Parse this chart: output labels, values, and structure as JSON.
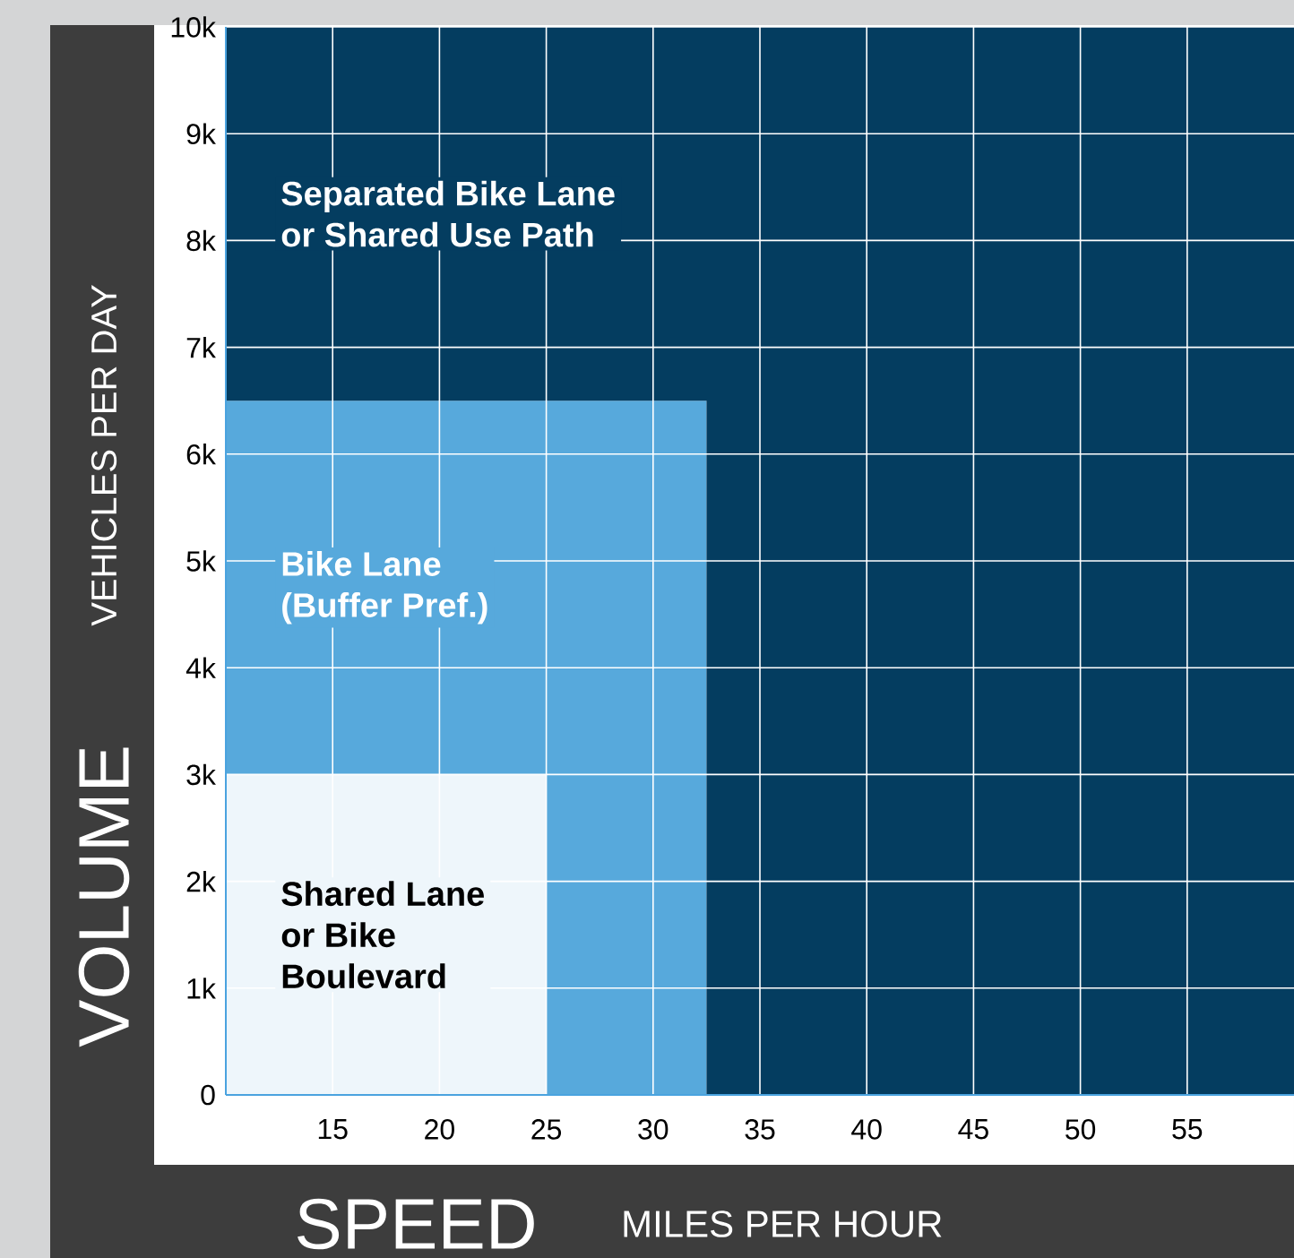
{
  "chart_data": {
    "type": "area",
    "stacked": true,
    "xlabel": "SPEED",
    "ylabel": "VOLUME",
    "annotations": [
      "MILES PER HOUR",
      "VEHICLES PER DAY"
    ],
    "x": [
      10,
      25,
      25,
      32.5,
      32.5,
      60
    ],
    "series": [
      {
        "name": "Shared Lane\nor Bike\nBoulevard",
        "color": "#eef6fb",
        "values": [
          3000,
          3000,
          0,
          null,
          null,
          null
        ]
      },
      {
        "name": "Bike Lane\n(Buffer Pref.)",
        "color": "#57a9dc",
        "values": [
          3500,
          3500,
          6500,
          6500,
          0,
          null
        ]
      },
      {
        "name": "Separated Bike Lane\nor Shared Use Path",
        "color": "#043d60",
        "values": [
          3500,
          3500,
          3500,
          3500,
          10000,
          10000
        ]
      }
    ],
    "xlim": [
      10,
      60
    ],
    "ylim": [
      0,
      10000
    ],
    "xticks": [
      15,
      20,
      25,
      30,
      35,
      40,
      45,
      50,
      55
    ],
    "yticks": [
      0,
      {
        "value": 1000,
        "label": "1k"
      },
      {
        "value": 2000,
        "label": "2k"
      },
      {
        "value": 3000,
        "label": "3k"
      },
      {
        "value": 4000,
        "label": "4k"
      },
      {
        "value": 5000,
        "label": "5k"
      },
      {
        "value": 6000,
        "label": "6k"
      },
      {
        "value": 7000,
        "label": "7k"
      },
      {
        "value": 8000,
        "label": "8k"
      },
      {
        "value": 9000,
        "label": "9k"
      },
      {
        "value": 10000,
        "label": "10k"
      }
    ],
    "grid": true
  }
}
